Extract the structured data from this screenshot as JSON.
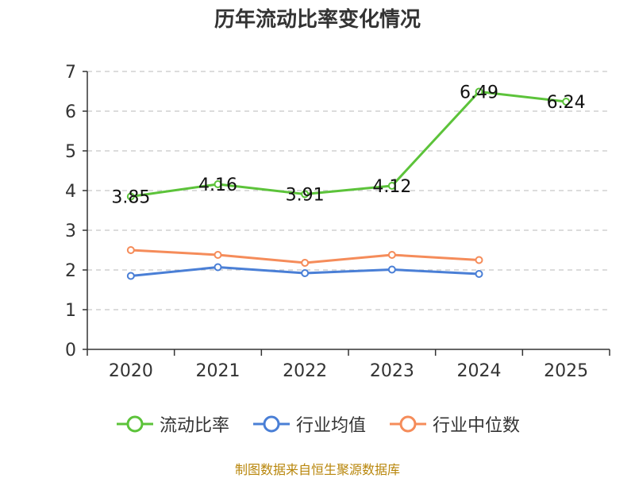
{
  "colors": {
    "series": [
      "#5cc33a",
      "#4a7fd6",
      "#f58c5a"
    ],
    "grid": "#c8c8c8",
    "axis": "#333333",
    "source": "#b8860b"
  },
  "chart_data": {
    "type": "line",
    "title": "历年流动比率变化情况",
    "xlabel": "",
    "ylabel": "",
    "categories": [
      "2020",
      "2021",
      "2022",
      "2023",
      "2024",
      "2025"
    ],
    "ylim": [
      0,
      7
    ],
    "yticks": [
      "0",
      "1",
      "2",
      "3",
      "4",
      "5",
      "6",
      "7"
    ],
    "grid": true,
    "legend_position": "bottom",
    "series": [
      {
        "name": "流动比率",
        "values": [
          3.85,
          4.16,
          3.91,
          4.12,
          6.49,
          6.24
        ],
        "labels": [
          "3.85",
          "4.16",
          "3.91",
          "4.12",
          "6.49",
          "6.24"
        ]
      },
      {
        "name": "行业均值",
        "values": [
          1.85,
          2.07,
          1.92,
          2.01,
          1.9,
          null
        ]
      },
      {
        "name": "行业中位数",
        "values": [
          2.5,
          2.38,
          2.18,
          2.38,
          2.25,
          null
        ]
      }
    ]
  },
  "source": "制图数据来自恒生聚源数据库"
}
